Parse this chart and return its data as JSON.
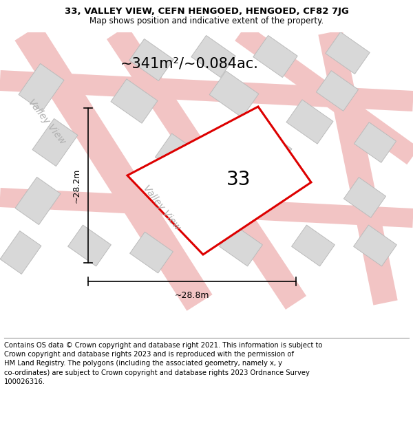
{
  "title": "33, VALLEY VIEW, CEFN HENGOED, HENGOED, CF82 7JG",
  "subtitle": "Map shows position and indicative extent of the property.",
  "footer": "Contains OS data © Crown copyright and database right 2021. This information is subject to\nCrown copyright and database rights 2023 and is reproduced with the permission of\nHM Land Registry. The polygons (including the associated geometry, namely x, y\nco-ordinates) are subject to Crown copyright and database rights 2023 Ordnance Survey\n100026316.",
  "area_label": "~341m²/~0.084ac.",
  "number_label": "33",
  "dim_vertical": "~28.2m",
  "dim_horizontal": "~28.8m",
  "street_label_1": "Valley View",
  "street_label_2": "Valley View",
  "bg_color": "#eeeeee",
  "plot_fill": "#ffffff",
  "plot_edge_color": "#dd0000",
  "road_color": "#f2c4c4",
  "building_color": "#d8d8d8",
  "building_edge_color": "#bbbbbb",
  "title_fontsize": 9.5,
  "subtitle_fontsize": 8.5,
  "footer_fontsize": 7.2,
  "area_label_fontsize": 15,
  "number_label_fontsize": 20,
  "dim_fontsize": 9,
  "street_fontsize": 10,
  "white": "#ffffff",
  "black": "#000000",
  "gray_street": "#b0b0b0"
}
